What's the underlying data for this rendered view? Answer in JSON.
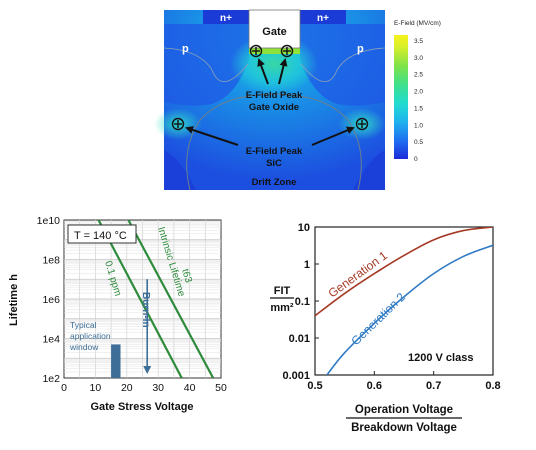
{
  "sim": {
    "gate_label": "Gate",
    "n_plus_left": "n+",
    "n_plus_right": "n+",
    "p_left": "p",
    "p_right": "p",
    "peak_oxide_line1": "E-Field Peak",
    "peak_oxide_line2": "Gate Oxide",
    "peak_sic_line1": "E-Field Peak",
    "peak_sic_line2": "SiC",
    "drift_zone": "Drift Zone",
    "colorbar": {
      "title": "E-Field (MV/cm)",
      "ticks": [
        "3.5",
        "3.0",
        "2.5",
        "2.0",
        "1.5",
        "1.0",
        "0.5",
        "0"
      ]
    }
  },
  "chart_data": [
    {
      "type": "line",
      "subtype": "lifetime-vs-gate-stress",
      "xlabel": "Gate Stress Voltage",
      "ylabel": "Lifetime h",
      "xscale": "linear",
      "yscale": "log",
      "xlim": [
        0,
        50
      ],
      "ylim": [
        100,
        10000000000
      ],
      "x_ticks": [
        "0",
        "10",
        "20",
        "30",
        "40",
        "50"
      ],
      "y_ticks": [
        "1e2",
        "1e4",
        "1e6",
        "1e8",
        "1e10"
      ],
      "grid": true,
      "annotation_box": "T = 140 °C",
      "series": [
        {
          "name": "0.1 ppm",
          "x": [
            11,
            37.5
          ],
          "y": [
            10000000000,
            100
          ],
          "color": "#2e8b3c"
        },
        {
          "name": "t63 Intrinsic Lifetime",
          "x": [
            20.5,
            47.5
          ],
          "y": [
            10000000000,
            100
          ],
          "color": "#2e8b3c"
        }
      ],
      "typical_window": {
        "label_lines": [
          "Typical",
          "application",
          "window"
        ],
        "x": [
          15,
          18
        ],
        "y": [
          100,
          5000
        ],
        "color": "#3d6e98"
      },
      "burn_in": {
        "label": "Burn-In",
        "x": 26.5,
        "y_from": 10000000,
        "y_to": 200
      },
      "series_labels": {
        "ppm": "0.1 ppm",
        "t63": "t63",
        "intrinsic": "Intrinsic Lifetime"
      }
    },
    {
      "type": "line",
      "subtype": "fit-vs-voltage-ratio",
      "xscale": "linear",
      "yscale": "log",
      "xlim": [
        0.5,
        0.8
      ],
      "ylim": [
        0.001,
        10
      ],
      "x_ticks": [
        "0.5",
        "0.6",
        "0.7",
        "0.8"
      ],
      "y_ticks": [
        "10",
        "1",
        "0.1",
        "0.01",
        "0.001"
      ],
      "ylabel_num": "FIT",
      "ylabel_den": "mm²",
      "xlabel_num": "Operation Voltage",
      "xlabel_den": "Breakdown Voltage",
      "annotation": "1200 V class",
      "series": [
        {
          "name": "Generation 1",
          "x": [
            0.5,
            0.55,
            0.6,
            0.65,
            0.7,
            0.75,
            0.8
          ],
          "y": [
            0.04,
            0.16,
            0.55,
            1.7,
            4.5,
            8.0,
            10.0
          ],
          "color": "#a53a25"
        },
        {
          "name": "Generation 2",
          "x": [
            0.52,
            0.55,
            0.6,
            0.65,
            0.7,
            0.75,
            0.8
          ],
          "y": [
            0.001,
            0.004,
            0.025,
            0.13,
            0.55,
            1.6,
            3.2
          ],
          "color": "#2f7ac4"
        }
      ]
    }
  ]
}
